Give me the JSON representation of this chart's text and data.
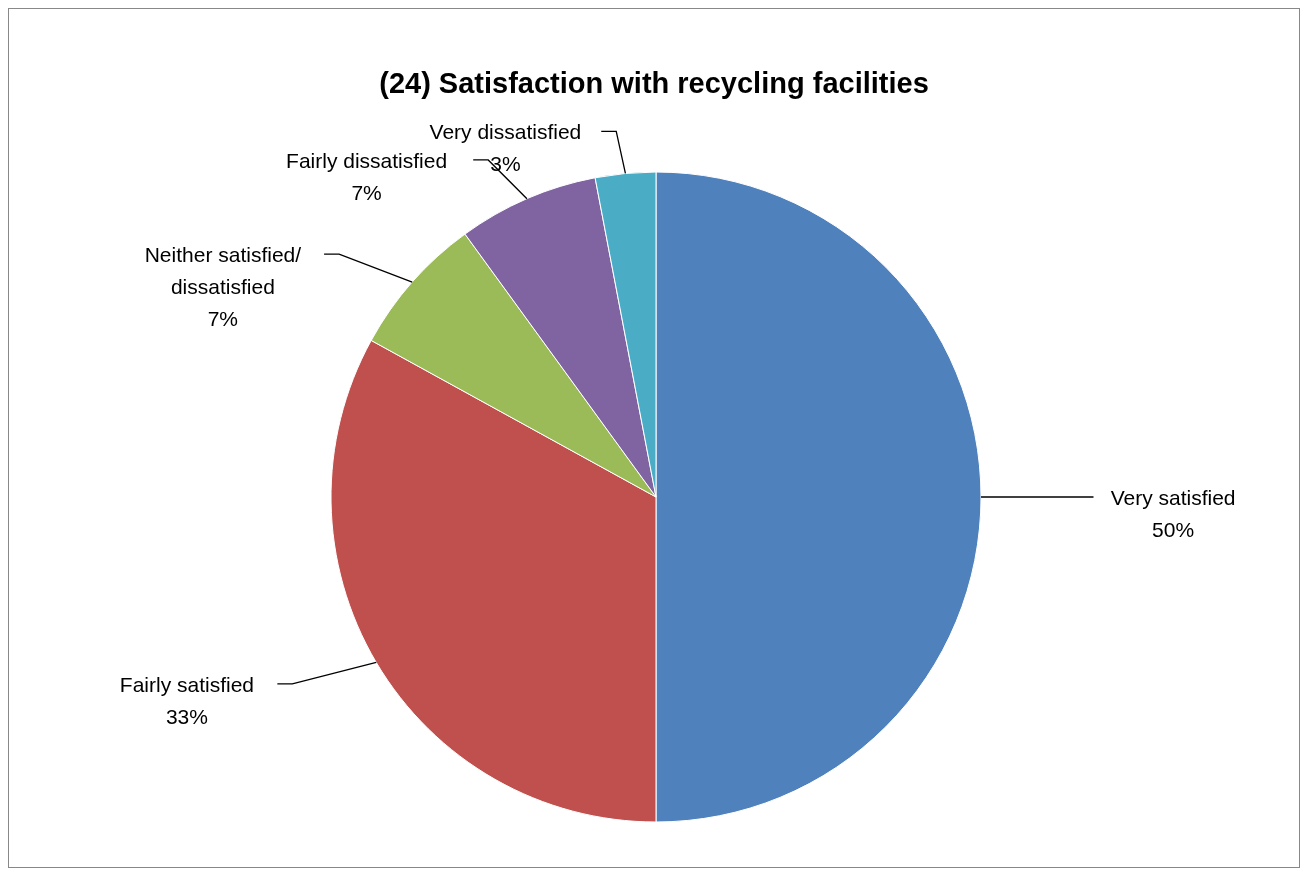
{
  "chart_data": {
    "type": "pie",
    "title": "(24) Satisfaction with recycling facilities",
    "categories": [
      "Very satisfied",
      "Fairly satisfied",
      "Neither satisfied/ dissatisfied",
      "Fairly dissatisfied",
      "Very dissatisfied"
    ],
    "values": [
      50,
      33,
      7,
      7,
      3
    ],
    "colors": [
      "#4f81bd",
      "#c0504d",
      "#9bbb59",
      "#8064a2",
      "#4bacc6"
    ],
    "value_labels": [
      "50%",
      "33%",
      "7%",
      "7%",
      "3%"
    ],
    "legend": false
  }
}
